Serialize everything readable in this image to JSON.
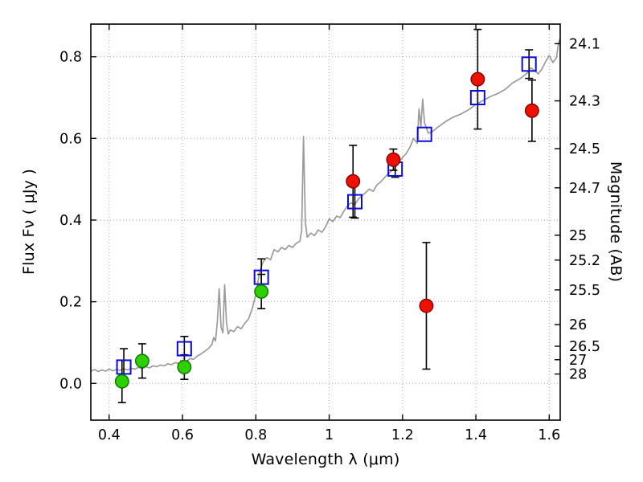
{
  "chart_data": {
    "type": "line+scatter",
    "title": "",
    "xlabel": "Wavelength  λ (μm)",
    "ylabel_left": "Flux  Fν ( μJy )",
    "ylabel_right": "Magnitude (AB)",
    "xlim": [
      0.35,
      1.63
    ],
    "ylim": [
      -0.09,
      0.88
    ],
    "grid": {
      "on": true,
      "style": "dotted",
      "color": "#aaaaaa"
    },
    "frame_color": "#000000",
    "xticks": [
      {
        "v": 0.4,
        "label": "0.4"
      },
      {
        "v": 0.6,
        "label": "0.6"
      },
      {
        "v": 0.8,
        "label": "0.8"
      },
      {
        "v": 1.0,
        "label": "1"
      },
      {
        "v": 1.2,
        "label": "1.2"
      },
      {
        "v": 1.4,
        "label": "1.4"
      },
      {
        "v": 1.6,
        "label": "1.6"
      }
    ],
    "yticks_left": [
      {
        "v": 0.0,
        "label": "0.0"
      },
      {
        "v": 0.2,
        "label": "0.2"
      },
      {
        "v": 0.4,
        "label": "0.4"
      },
      {
        "v": 0.6,
        "label": "0.6"
      },
      {
        "v": 0.8,
        "label": "0.8"
      }
    ],
    "yticks_right": [
      {
        "flux": 0.832,
        "label": "24.1"
      },
      {
        "flux": 0.692,
        "label": "24.3"
      },
      {
        "flux": 0.575,
        "label": "24.5"
      },
      {
        "flux": 0.479,
        "label": "24.7"
      },
      {
        "flux": 0.363,
        "label": "25"
      },
      {
        "flux": 0.302,
        "label": "25.2"
      },
      {
        "flux": 0.229,
        "label": "25.5"
      },
      {
        "flux": 0.144,
        "label": "26"
      },
      {
        "flux": 0.091,
        "label": "26.5"
      },
      {
        "flux": 0.058,
        "label": "27"
      },
      {
        "flux": 0.023,
        "label": "28"
      }
    ],
    "spectrum": {
      "name": "model-spectrum",
      "color": "#9b9b9b",
      "width": 1.7,
      "points": [
        [
          0.35,
          0.03
        ],
        [
          0.36,
          0.034
        ],
        [
          0.37,
          0.029
        ],
        [
          0.38,
          0.033
        ],
        [
          0.39,
          0.03
        ],
        [
          0.4,
          0.035
        ],
        [
          0.41,
          0.031
        ],
        [
          0.42,
          0.034
        ],
        [
          0.43,
          0.032
        ],
        [
          0.44,
          0.036
        ],
        [
          0.45,
          0.033
        ],
        [
          0.46,
          0.037
        ],
        [
          0.47,
          0.035
        ],
        [
          0.48,
          0.039
        ],
        [
          0.49,
          0.036
        ],
        [
          0.5,
          0.041
        ],
        [
          0.51,
          0.038
        ],
        [
          0.52,
          0.043
        ],
        [
          0.53,
          0.041
        ],
        [
          0.54,
          0.045
        ],
        [
          0.55,
          0.043
        ],
        [
          0.56,
          0.048
        ],
        [
          0.57,
          0.046
        ],
        [
          0.58,
          0.051
        ],
        [
          0.59,
          0.049
        ],
        [
          0.6,
          0.056
        ],
        [
          0.61,
          0.053
        ],
        [
          0.62,
          0.061
        ],
        [
          0.63,
          0.059
        ],
        [
          0.64,
          0.067
        ],
        [
          0.65,
          0.072
        ],
        [
          0.66,
          0.078
        ],
        [
          0.67,
          0.085
        ],
        [
          0.68,
          0.095
        ],
        [
          0.685,
          0.112
        ],
        [
          0.69,
          0.104
        ],
        [
          0.695,
          0.15
        ],
        [
          0.7,
          0.232
        ],
        [
          0.705,
          0.138
        ],
        [
          0.71,
          0.124
        ],
        [
          0.715,
          0.242
        ],
        [
          0.72,
          0.148
        ],
        [
          0.725,
          0.121
        ],
        [
          0.73,
          0.131
        ],
        [
          0.74,
          0.127
        ],
        [
          0.75,
          0.139
        ],
        [
          0.76,
          0.134
        ],
        [
          0.77,
          0.147
        ],
        [
          0.78,
          0.158
        ],
        [
          0.79,
          0.183
        ],
        [
          0.8,
          0.218
        ],
        [
          0.81,
          0.272
        ],
        [
          0.82,
          0.298
        ],
        [
          0.83,
          0.308
        ],
        [
          0.84,
          0.303
        ],
        [
          0.85,
          0.328
        ],
        [
          0.86,
          0.322
        ],
        [
          0.87,
          0.333
        ],
        [
          0.88,
          0.328
        ],
        [
          0.89,
          0.338
        ],
        [
          0.9,
          0.333
        ],
        [
          0.91,
          0.343
        ],
        [
          0.92,
          0.348
        ],
        [
          0.925,
          0.375
        ],
        [
          0.93,
          0.605
        ],
        [
          0.935,
          0.395
        ],
        [
          0.94,
          0.358
        ],
        [
          0.95,
          0.368
        ],
        [
          0.96,
          0.362
        ],
        [
          0.97,
          0.376
        ],
        [
          0.98,
          0.37
        ],
        [
          0.99,
          0.383
        ],
        [
          1.0,
          0.403
        ],
        [
          1.01,
          0.396
        ],
        [
          1.02,
          0.41
        ],
        [
          1.03,
          0.406
        ],
        [
          1.04,
          0.422
        ],
        [
          1.05,
          0.435
        ],
        [
          1.06,
          0.442
        ],
        [
          1.07,
          0.438
        ],
        [
          1.08,
          0.452
        ],
        [
          1.09,
          0.46
        ],
        [
          1.1,
          0.468
        ],
        [
          1.11,
          0.476
        ],
        [
          1.12,
          0.47
        ],
        [
          1.13,
          0.486
        ],
        [
          1.14,
          0.493
        ],
        [
          1.15,
          0.503
        ],
        [
          1.16,
          0.513
        ],
        [
          1.17,
          0.52
        ],
        [
          1.18,
          0.528
        ],
        [
          1.19,
          0.543
        ],
        [
          1.2,
          0.553
        ],
        [
          1.21,
          0.563
        ],
        [
          1.22,
          0.578
        ],
        [
          1.23,
          0.6
        ],
        [
          1.24,
          0.588
        ],
        [
          1.245,
          0.672
        ],
        [
          1.25,
          0.628
        ],
        [
          1.255,
          0.696
        ],
        [
          1.26,
          0.638
        ],
        [
          1.27,
          0.613
        ],
        [
          1.28,
          0.616
        ],
        [
          1.29,
          0.623
        ],
        [
          1.3,
          0.63
        ],
        [
          1.32,
          0.643
        ],
        [
          1.34,
          0.653
        ],
        [
          1.36,
          0.66
        ],
        [
          1.38,
          0.67
        ],
        [
          1.4,
          0.683
        ],
        [
          1.42,
          0.693
        ],
        [
          1.44,
          0.703
        ],
        [
          1.46,
          0.71
        ],
        [
          1.48,
          0.72
        ],
        [
          1.5,
          0.736
        ],
        [
          1.52,
          0.746
        ],
        [
          1.54,
          0.76
        ],
        [
          1.55,
          0.773
        ],
        [
          1.56,
          0.766
        ],
        [
          1.57,
          0.758
        ],
        [
          1.58,
          0.77
        ],
        [
          1.59,
          0.788
        ],
        [
          1.6,
          0.803
        ],
        [
          1.61,
          0.786
        ],
        [
          1.62,
          0.798
        ],
        [
          1.625,
          0.832
        ],
        [
          1.63,
          0.845
        ]
      ]
    },
    "series": [
      {
        "name": "photometry-green",
        "marker": "circle",
        "fill": "#2fd000",
        "edge": "#0f7a00",
        "errbar_color": "#000000",
        "points": [
          {
            "x": 0.435,
            "y": 0.005,
            "err": 0.052
          },
          {
            "x": 0.49,
            "y": 0.055,
            "err": 0.042
          },
          {
            "x": 0.605,
            "y": 0.04,
            "err": 0.03
          },
          {
            "x": 0.815,
            "y": 0.225,
            "err": 0.042
          }
        ]
      },
      {
        "name": "model-photometry-blue",
        "marker": "square",
        "fill": "none",
        "edge": "#0a0ae0",
        "errbar_color": "#000000",
        "points": [
          {
            "x": 0.44,
            "y": 0.04,
            "err": 0.045
          },
          {
            "x": 0.605,
            "y": 0.085,
            "err": 0.03
          },
          {
            "x": 0.815,
            "y": 0.26,
            "err": 0.045
          },
          {
            "x": 1.07,
            "y": 0.445,
            "err": 0.04
          },
          {
            "x": 1.18,
            "y": 0.525,
            "err": 0.02
          },
          {
            "x": 1.26,
            "y": 0.61,
            "err": 0
          },
          {
            "x": 1.405,
            "y": 0.7,
            "err": 0
          },
          {
            "x": 1.545,
            "y": 0.782,
            "err": 0.035
          }
        ]
      },
      {
        "name": "photometry-red",
        "marker": "circle",
        "fill": "#ee1100",
        "edge": "#8c0000",
        "errbar_color": "#000000",
        "points": [
          {
            "x": 1.065,
            "y": 0.495,
            "err": 0.088
          },
          {
            "x": 1.175,
            "y": 0.548,
            "err": 0.026
          },
          {
            "x": 1.265,
            "y": 0.19,
            "err": 0.155
          },
          {
            "x": 1.405,
            "y": 0.745,
            "err": 0.122
          },
          {
            "x": 1.553,
            "y": 0.668,
            "err": 0.075
          }
        ]
      }
    ]
  }
}
